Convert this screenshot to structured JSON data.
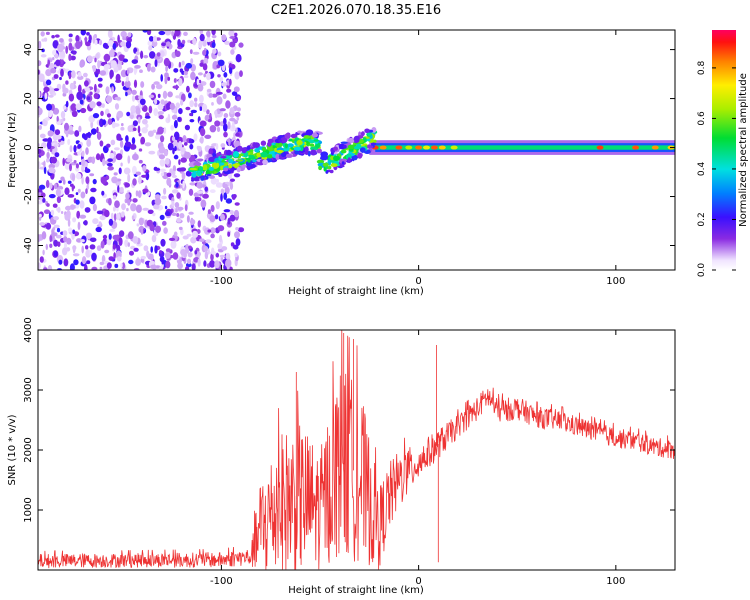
{
  "chart_data": [
    {
      "type": "heatmap",
      "title": "C2E1.2026.070.18.35.E16",
      "xlabel": "Height of straight line (km)",
      "ylabel": "Frequency (Hz)",
      "xlim": [
        -193,
        130
      ],
      "ylim": [
        -50,
        48
      ],
      "xticks": [
        -100,
        0,
        100
      ],
      "yticks": [
        -40,
        -20,
        0,
        20,
        40
      ],
      "colorbar": {
        "label": "Normalized spectral amplitude",
        "range": [
          0.0,
          0.95
        ],
        "ticks": [
          0.0,
          0.2,
          0.4,
          0.6,
          0.8
        ]
      },
      "features": [
        {
          "name": "noise",
          "x_range": [
            -193,
            -90
          ],
          "freq_range": [
            -50,
            48
          ],
          "amplitude": "low (0.1-0.25)"
        },
        {
          "name": "onset",
          "x_range": [
            -115,
            -22
          ],
          "freq_range": [
            -12,
            10
          ],
          "amplitude": "0.3-0.7"
        },
        {
          "name": "ridge",
          "x_range": [
            -22,
            130
          ],
          "freq": 0,
          "amplitude": "0.5-0.95"
        }
      ]
    },
    {
      "type": "line",
      "title": "",
      "xlabel": "Height of straight line (km)",
      "ylabel": "SNR (10 * v/v)",
      "xlim": [
        -193,
        130
      ],
      "ylim": [
        0,
        4000
      ],
      "xticks": [
        -100,
        0,
        100
      ],
      "yticks": [
        1000,
        2000,
        3000,
        4000
      ],
      "series": [
        {
          "name": "SNR",
          "color": "#ee3333",
          "envelope": {
            "x": [
              -193,
              -150,
              -100,
              -85,
              -80,
              -70,
              -60,
              -50,
              -40,
              -30,
              -20,
              -15,
              -10,
              0,
              10,
              20,
              30,
              35,
              40,
              50,
              60,
              70,
              80,
              90,
              100,
              110,
              120,
              130
            ],
            "mean": [
              150,
              160,
              170,
              220,
              700,
              1100,
              1200,
              1000,
              1800,
              1600,
              700,
              1200,
              1500,
              1800,
              2100,
              2400,
              2700,
              2900,
              2650,
              2700,
              2550,
              2500,
              2400,
              2300,
              2200,
              2150,
              2050,
              2000
            ],
            "spread": [
              120,
              120,
              130,
              150,
              900,
              1200,
              1300,
              1000,
              1600,
              1500,
              700,
              600,
              500,
              300,
              250,
              200,
              200,
              200,
              200,
              200,
              180,
              180,
              170,
              170,
              170,
              160,
              160,
              160
            ]
          },
          "peaks": [
            {
              "x": -62,
              "y": 3300
            },
            {
              "x": -38,
              "y": 3950
            },
            {
              "x": -33,
              "y": 3850
            },
            {
              "x": 9,
              "y": 3750
            },
            {
              "x": 10,
              "y": 130
            }
          ]
        }
      ]
    }
  ]
}
